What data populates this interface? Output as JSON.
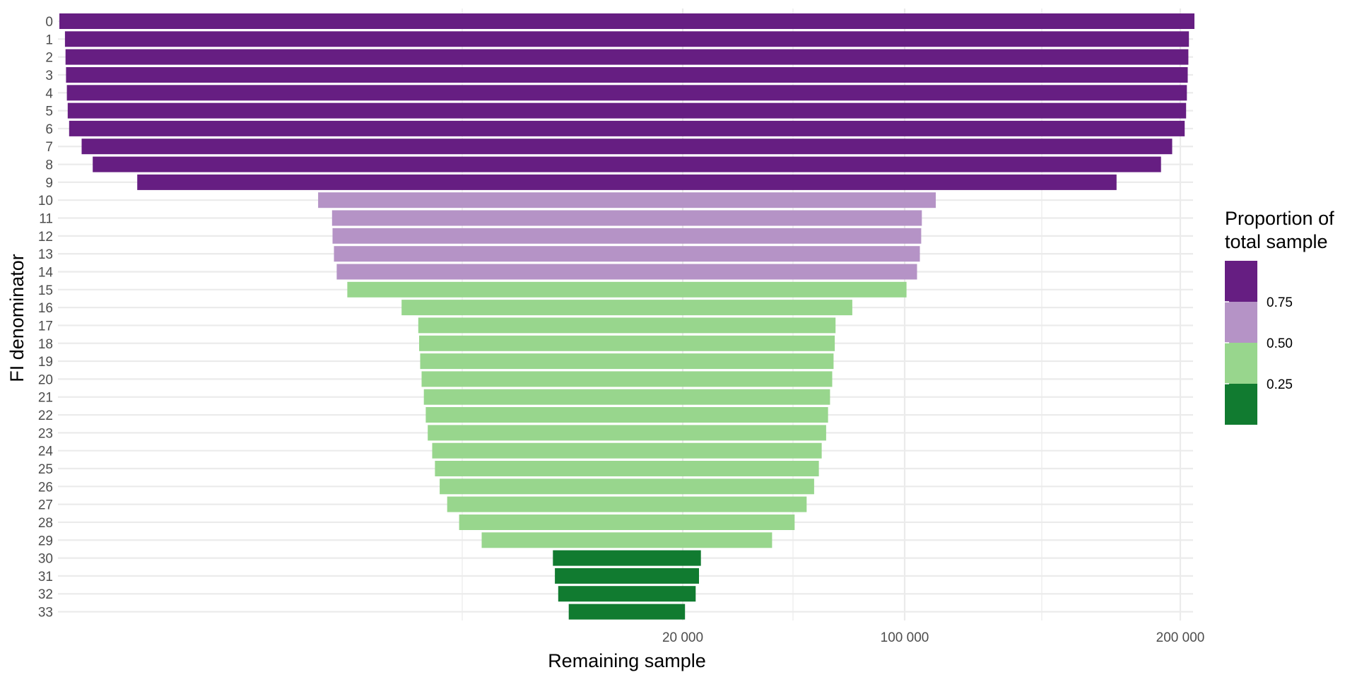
{
  "chart_data": {
    "type": "bar",
    "orientation": "horizontal",
    "layout": "centered funnel",
    "ylabel": "FI denominator",
    "xlabel": "Remaining sample",
    "x_tick_labels": [
      "20 000",
      "100 000",
      "200 000"
    ],
    "x_tick_values": [
      20000,
      100000,
      200000
    ],
    "grid": true,
    "legend": {
      "title": "Proportion of total sample",
      "title_lines": [
        "Proportion of",
        "total sample"
      ],
      "position": "right",
      "labels": [
        "0.75",
        "0.50",
        "0.25"
      ],
      "bins": [
        {
          "label": "0.75",
          "color": "#661E82"
        },
        {
          "label": "0.50",
          "color": "#B593C6"
        },
        {
          "label": "0.25",
          "color": "#98D68D"
        },
        {
          "label": "",
          "color": "#117B30"
        }
      ]
    },
    "categories": [
      "0",
      "1",
      "2",
      "3",
      "4",
      "5",
      "6",
      "7",
      "8",
      "9",
      "10",
      "11",
      "12",
      "13",
      "14",
      "15",
      "16",
      "17",
      "18",
      "19",
      "20",
      "21",
      "22",
      "23",
      "24",
      "25",
      "26",
      "27",
      "28",
      "29",
      "30",
      "31",
      "32",
      "33"
    ],
    "values": [
      204000,
      202000,
      201800,
      201600,
      201300,
      201000,
      200500,
      196000,
      192000,
      176000,
      111000,
      106000,
      105800,
      105300,
      104300,
      100500,
      81000,
      75000,
      74700,
      74300,
      73800,
      73000,
      72300,
      71600,
      70000,
      69000,
      67300,
      64600,
      60300,
      52200,
      26600,
      25900,
      24700,
      20900
    ],
    "proportion": [
      1.0,
      0.99,
      0.99,
      0.99,
      0.99,
      0.985,
      0.983,
      0.96,
      0.94,
      0.86,
      0.544,
      0.52,
      0.519,
      0.516,
      0.511,
      0.493,
      0.397,
      0.368,
      0.366,
      0.364,
      0.362,
      0.358,
      0.354,
      0.351,
      0.343,
      0.338,
      0.33,
      0.317,
      0.296,
      0.256,
      0.13,
      0.127,
      0.121,
      0.102
    ],
    "colors": {
      "purple_dark": "#661E82",
      "purple_light": "#B593C6",
      "green_light": "#98D68D",
      "green_dark": "#117B30"
    }
  }
}
